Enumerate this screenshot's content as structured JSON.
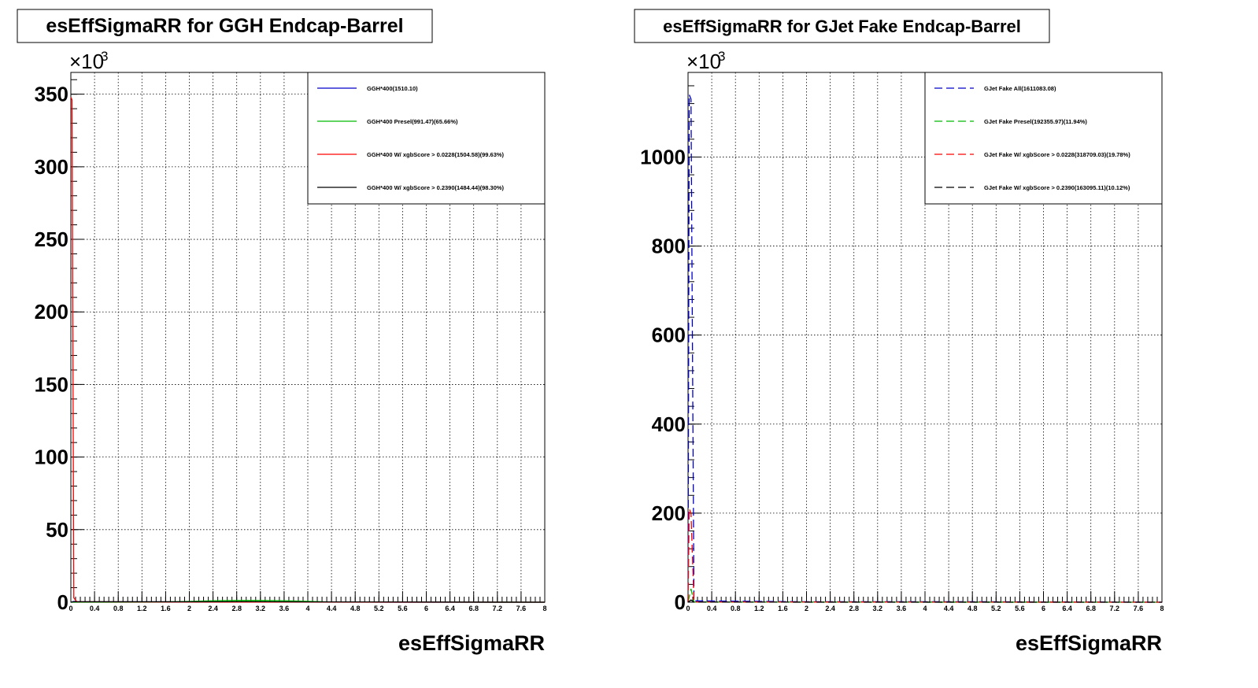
{
  "chart_data": [
    {
      "type": "line",
      "title": "esEffSigmaRR for GGH Endcap-Barrel",
      "xlabel": "esEffSigmaRR",
      "ylabel": "",
      "y_multiplier_base": "×10",
      "y_multiplier_exp": "3",
      "xlim": [
        0,
        8
      ],
      "ylim": [
        0,
        365
      ],
      "x_ticks": [
        "0",
        "0.4",
        "0.8",
        "1.2",
        "1.6",
        "2",
        "2.4",
        "2.8",
        "3.2",
        "3.6",
        "4",
        "4.4",
        "4.8",
        "5.2",
        "5.6",
        "6",
        "6.4",
        "6.8",
        "7.2",
        "7.6",
        "8"
      ],
      "x_tick_values": [
        0,
        0.4,
        0.8,
        1.2,
        1.6,
        2,
        2.4,
        2.8,
        3.2,
        3.6,
        4,
        4.4,
        4.8,
        5.2,
        5.6,
        6,
        6.4,
        6.8,
        7.2,
        7.6,
        8
      ],
      "y_ticks": [
        "0",
        "50",
        "100",
        "150",
        "200",
        "250",
        "300",
        "350"
      ],
      "y_tick_values": [
        0,
        50,
        100,
        150,
        200,
        250,
        300,
        350
      ],
      "grid": true,
      "legend_position": "top-right",
      "series": [
        {
          "name": "GGH*400(1510.10)",
          "color": "#0000cc",
          "dashed": false,
          "x": [
            0,
            0.05,
            0.1,
            2.0,
            3.0,
            4.0,
            5.0,
            8.0
          ],
          "y": [
            0,
            0.5,
            0.3,
            0.2,
            0.2,
            0.1,
            0.05,
            0
          ]
        },
        {
          "name": "GGH*400 Presel(991.47)(65.66%)",
          "color": "#00bb00",
          "dashed": false,
          "x": [
            0,
            1.5,
            2.0,
            2.4,
            2.8,
            3.2,
            3.6,
            4.0,
            4.4,
            8.0
          ],
          "y": [
            0,
            0.1,
            0.5,
            1.0,
            1.2,
            1.2,
            1.0,
            0.6,
            0.1,
            0
          ]
        },
        {
          "name": "GGH*400 W/ xgbScore > 0.0228(1504.58)(99.63%)",
          "color": "#ff0000",
          "dashed": false,
          "x": [
            0,
            0.02,
            0.05,
            0.1,
            2.0,
            8.0
          ],
          "y": [
            348,
            346,
            3,
            0.3,
            0.1,
            0
          ]
        },
        {
          "name": "GGH*400 W/ xgbScore > 0.2390(1484.44)(98.30%)",
          "color": "#000000",
          "dashed": false,
          "x": [
            0,
            0.05,
            2.0,
            3.0,
            4.0,
            8.0
          ],
          "y": [
            0,
            0.3,
            0.3,
            0.4,
            0.2,
            0
          ]
        }
      ]
    },
    {
      "type": "line",
      "title": "esEffSigmaRR for GJet Fake Endcap-Barrel",
      "xlabel": "esEffSigmaRR",
      "ylabel": "",
      "y_multiplier_base": "×10",
      "y_multiplier_exp": "3",
      "xlim": [
        0,
        8
      ],
      "ylim": [
        0,
        1190
      ],
      "x_ticks": [
        "0",
        "0.4",
        "0.8",
        "1.2",
        "1.6",
        "2",
        "2.4",
        "2.8",
        "3.2",
        "3.6",
        "4",
        "4.4",
        "4.8",
        "5.2",
        "5.6",
        "6",
        "6.4",
        "6.8",
        "7.2",
        "7.6",
        "8"
      ],
      "x_tick_values": [
        0,
        0.4,
        0.8,
        1.2,
        1.6,
        2,
        2.4,
        2.8,
        3.2,
        3.6,
        4,
        4.4,
        4.8,
        5.2,
        5.6,
        6,
        6.4,
        6.8,
        7.2,
        7.6,
        8
      ],
      "y_ticks": [
        "0",
        "200",
        "400",
        "600",
        "800",
        "1000"
      ],
      "y_tick_values": [
        0,
        200,
        400,
        600,
        800,
        1000
      ],
      "grid": true,
      "legend_position": "top-right",
      "series": [
        {
          "name": "GJet Fake All(1611083.08)",
          "color": "#0000cc",
          "dashed": true,
          "x": [
            0,
            0.02,
            0.05,
            0.1,
            2.0,
            5.0,
            8.0
          ],
          "y": [
            0,
            1140,
            1130,
            3,
            1,
            1,
            0
          ]
        },
        {
          "name": "GJet Fake Presel(192355.97)(11.94%)",
          "color": "#00bb00",
          "dashed": true,
          "x": [
            0,
            0.05,
            0.1,
            8.0
          ],
          "y": [
            0,
            30,
            0.3,
            0
          ]
        },
        {
          "name": "GJet Fake W/ xgbScore > 0.0228(318709.03)(19.78%)",
          "color": "#ff0000",
          "dashed": true,
          "x": [
            0,
            0.02,
            0.05,
            0.1,
            8.0
          ],
          "y": [
            0,
            210,
            200,
            0.5,
            0
          ]
        },
        {
          "name": "GJet Fake W/ xgbScore > 0.2390(163095.11)(10.12%)",
          "color": "#000000",
          "dashed": true,
          "x": [
            0,
            0.05,
            0.1,
            8.0
          ],
          "y": [
            0,
            5,
            0.2,
            0
          ]
        }
      ]
    }
  ]
}
